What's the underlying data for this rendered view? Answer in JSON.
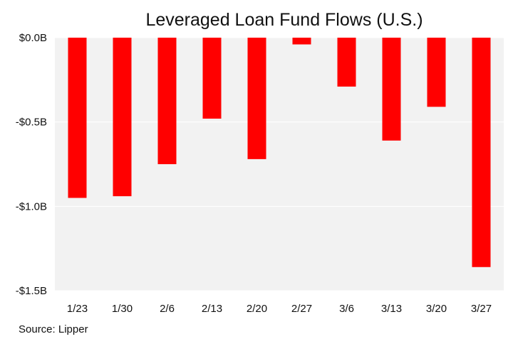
{
  "chart_data": {
    "type": "bar",
    "title": "Leveraged Loan Fund Flows (U.S.)",
    "source": "Source: Lipper",
    "xlabel": "",
    "ylabel": "",
    "categories": [
      "1/23",
      "1/30",
      "2/6",
      "2/13",
      "2/20",
      "2/27",
      "3/6",
      "3/13",
      "3/20",
      "3/27"
    ],
    "values": [
      -0.95,
      -0.94,
      -0.75,
      -0.48,
      -0.72,
      -0.04,
      -0.29,
      -0.61,
      -0.41,
      -1.36
    ],
    "ylim": [
      -1.5,
      0
    ],
    "yticks": [
      0,
      -0.5,
      -1.0,
      -1.5
    ],
    "ytick_labels": [
      "$0.0B",
      "-$0.5B",
      "-$1.0B",
      "-$1.5B"
    ],
    "grid": true,
    "legend": "none",
    "colors": {
      "bar": "#ff0000",
      "plot_background": "#f2f2f2",
      "gridline": "#ffffff"
    }
  }
}
